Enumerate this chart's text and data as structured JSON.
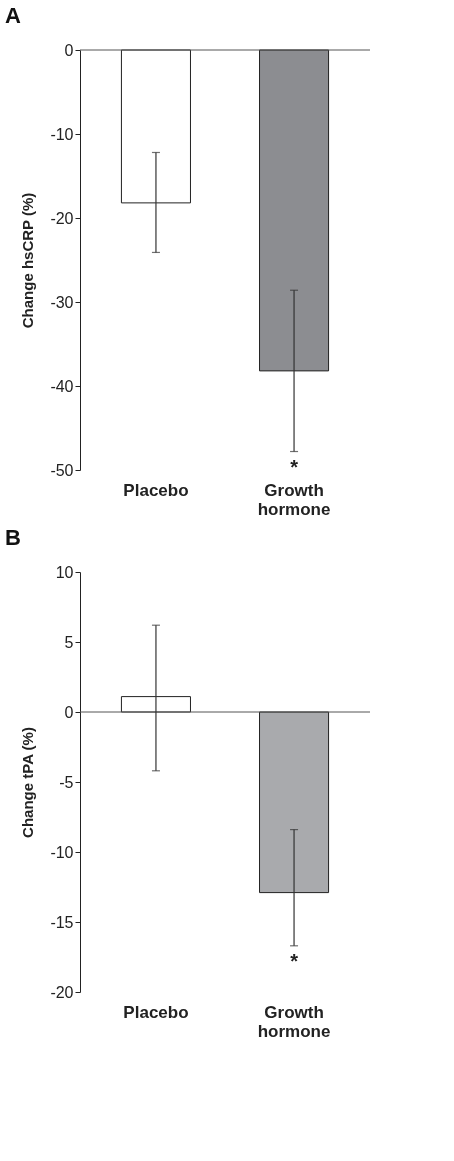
{
  "chart_data": [
    {
      "type": "bar",
      "title": "A",
      "ylabel": "Change hsCRP (%)",
      "categories": [
        "Placebo",
        "Growth hormone"
      ],
      "series": [
        {
          "values": [
            -18.2,
            -38.2
          ],
          "colors": [
            "#ffffff",
            "#8c8d91"
          ],
          "errors": [
            [
              -24.1,
              -12.2
            ],
            [
              -47.8,
              -28.6
            ]
          ]
        }
      ],
      "ylim": [
        -50,
        0
      ],
      "yticks": [
        0,
        -10,
        -20,
        -30,
        -40,
        -50
      ],
      "annotations": [
        {
          "text": "*",
          "x": "Growth hormone",
          "y": -47.8
        }
      ]
    },
    {
      "type": "bar",
      "title": "B",
      "ylabel": "Change tPA (%)",
      "categories": [
        "Placebo",
        "Growth hormone"
      ],
      "series": [
        {
          "values": [
            1.1,
            -12.9
          ],
          "colors": [
            "#ffffff",
            "#a9aaad"
          ],
          "errors": [
            [
              -4.2,
              6.2
            ],
            [
              -16.7,
              -8.4
            ]
          ]
        }
      ],
      "ylim": [
        -20,
        10
      ],
      "yticks": [
        10,
        5,
        0,
        -5,
        -10,
        -15,
        -20
      ],
      "annotations": [
        {
          "text": "*",
          "x": "Growth hormone",
          "y": -16.7
        }
      ]
    }
  ]
}
